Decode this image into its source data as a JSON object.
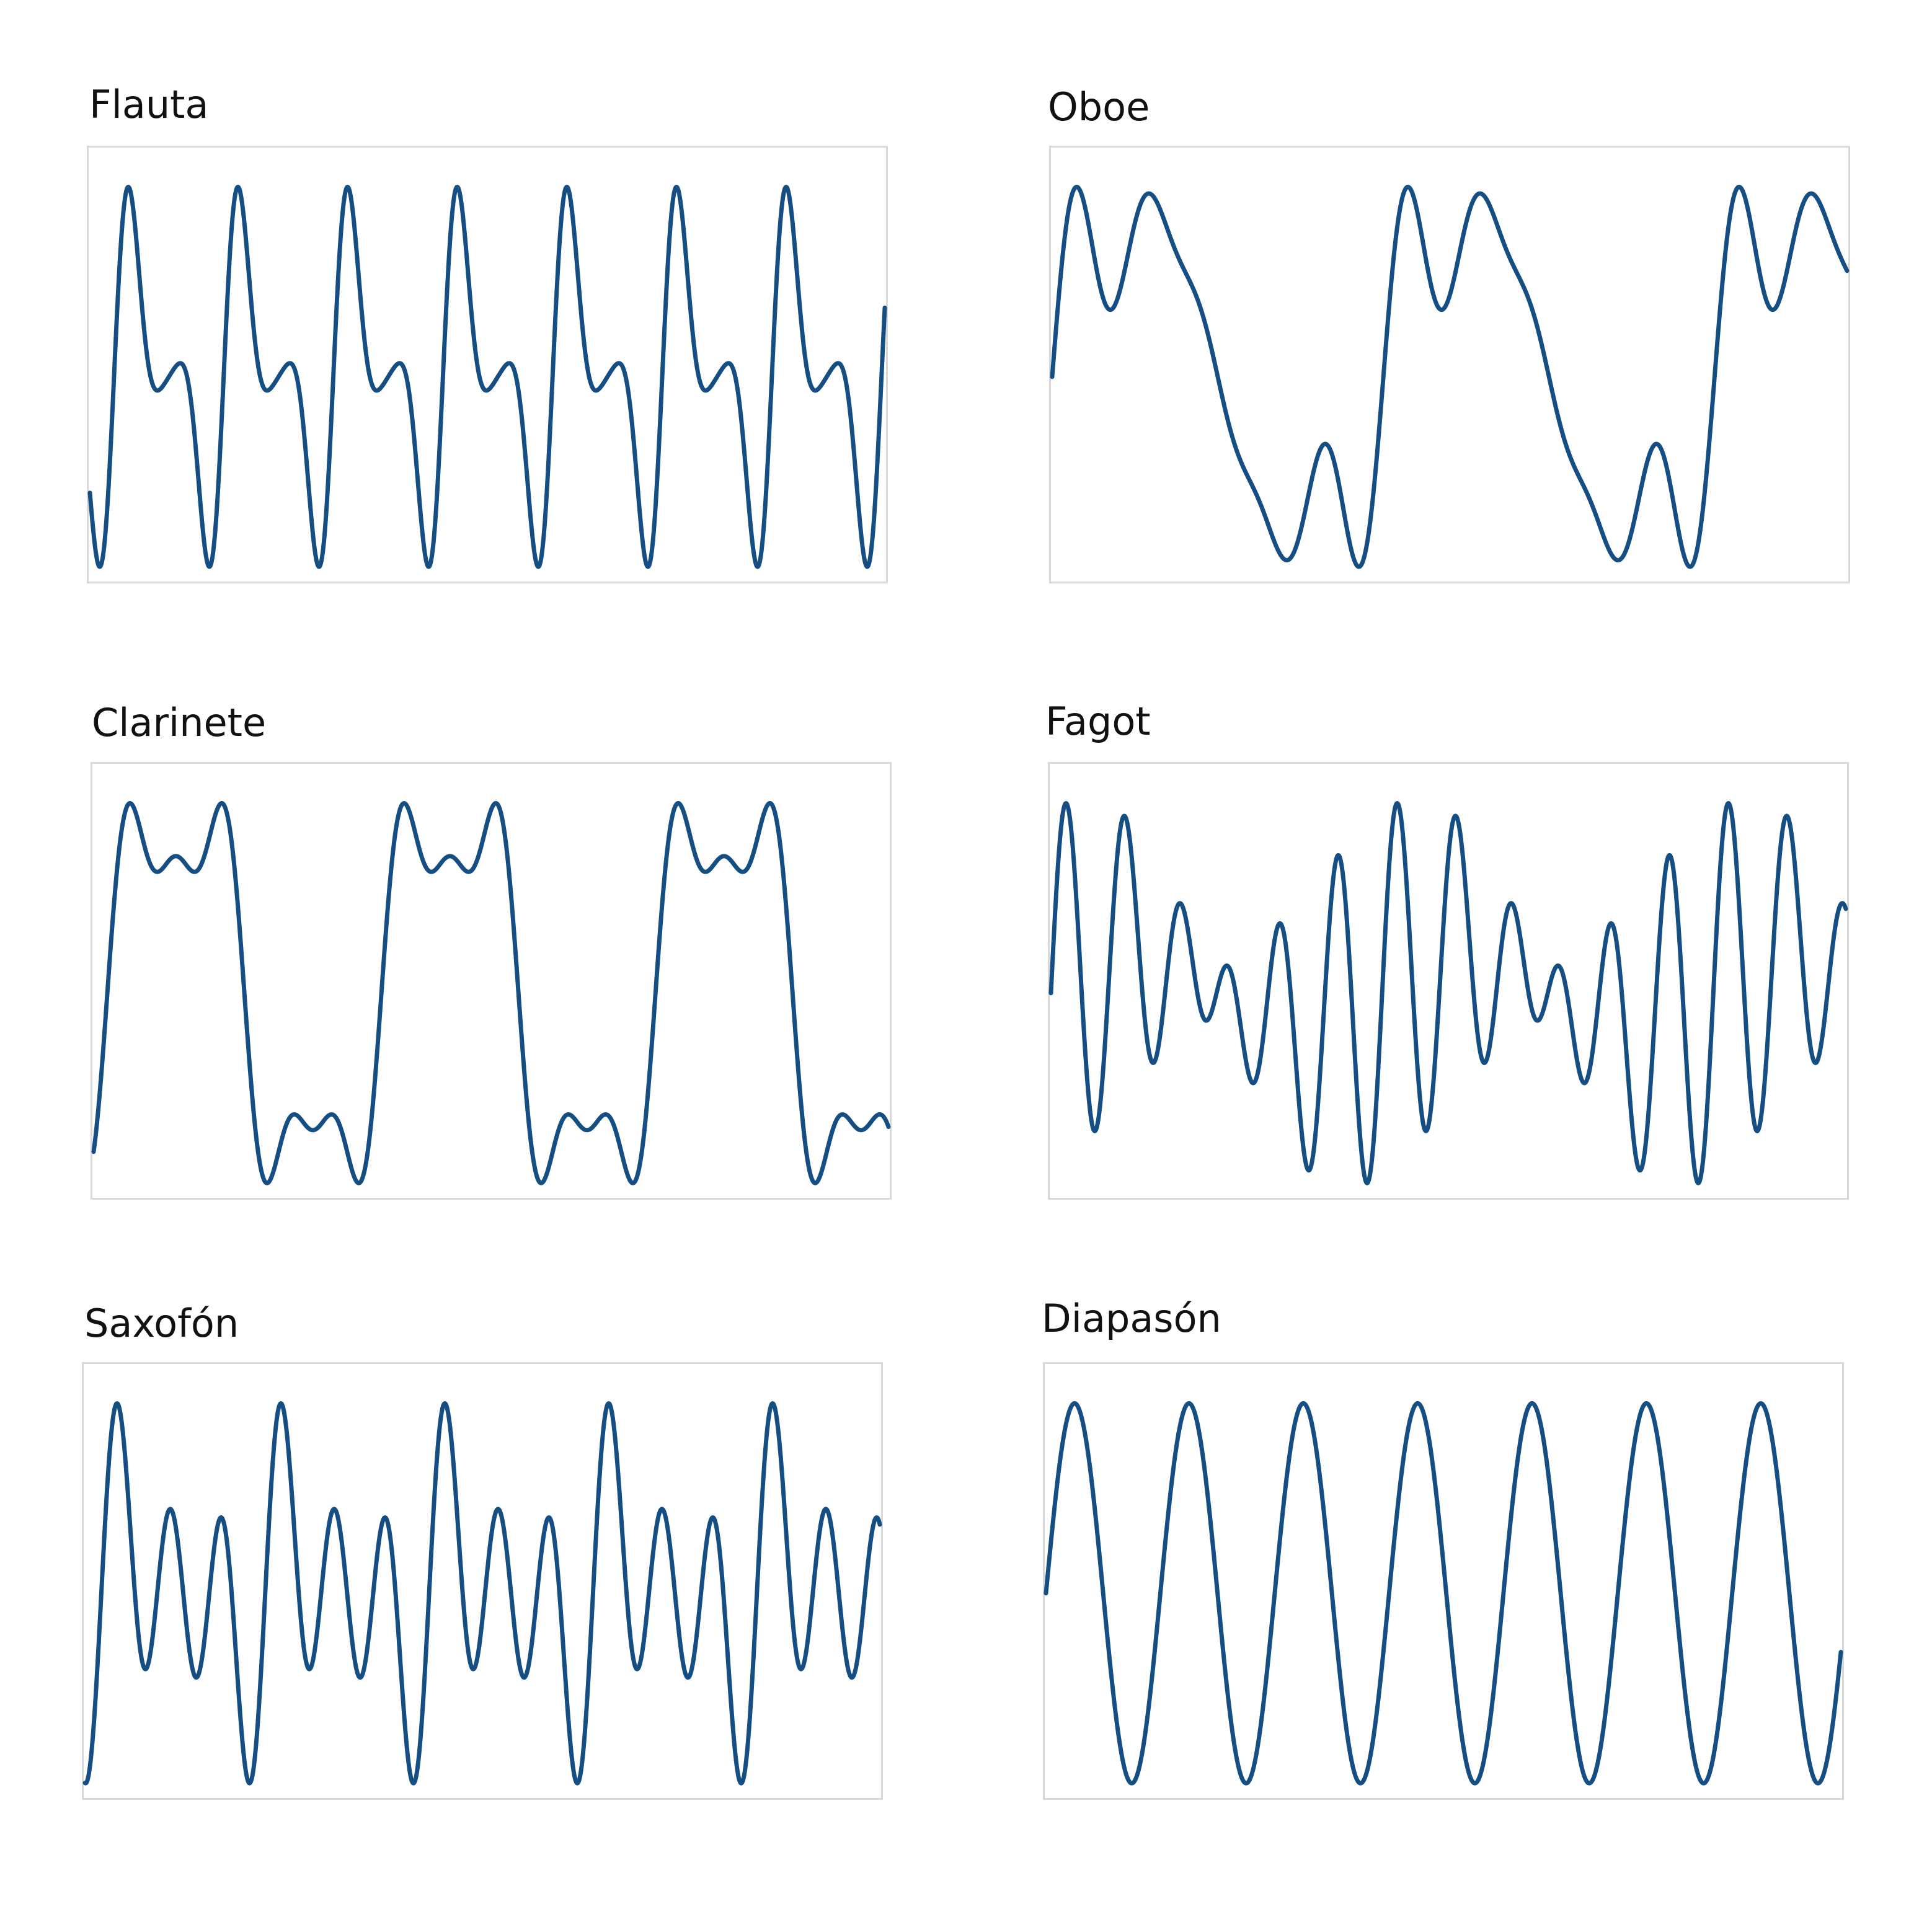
{
  "line_color": "#154e82",
  "chart_data": [
    {
      "type": "line",
      "title": "Flauta",
      "ylim": [
        -1,
        1
      ],
      "cycles": 7.25,
      "start_phase": -0.22,
      "harmonics": [
        {
          "n": 1,
          "amp": 0.5,
          "phase": 0
        },
        {
          "n": 2,
          "amp": 0.5,
          "phase": 0
        },
        {
          "n": 3,
          "amp": 0.12,
          "phase": 0
        }
      ]
    },
    {
      "type": "line",
      "title": "Oboe",
      "ylim": [
        -1,
        1
      ],
      "cycles": 2.4,
      "start_phase": 0,
      "harmonics": [
        {
          "n": 1,
          "amp": 0.62,
          "phase": 0
        },
        {
          "n": 3,
          "amp": 0.16,
          "phase": 0
        },
        {
          "n": 4,
          "amp": 0.2,
          "phase": 0
        },
        {
          "n": 5,
          "amp": 0.12,
          "phase": 0
        }
      ]
    },
    {
      "type": "line",
      "title": "Clarinete",
      "ylim": [
        -1,
        1
      ],
      "cycles": 2.9,
      "start_phase": -0.05,
      "harmonics": [
        {
          "n": 1,
          "amp": 0.58,
          "phase": 0
        },
        {
          "n": 3,
          "amp": 0.26,
          "phase": 0
        },
        {
          "n": 5,
          "amp": 0.12,
          "phase": 0
        }
      ]
    },
    {
      "type": "line",
      "title": "Fagot",
      "ylim": [
        -1,
        1
      ],
      "cycles": 2.4,
      "start_phase": 0,
      "harmonics": [
        {
          "n": 1,
          "amp": 0.15,
          "phase": 0
        },
        {
          "n": 5,
          "amp": 0.3,
          "phase": 0
        },
        {
          "n": 6,
          "amp": 0.42,
          "phase": 0
        }
      ]
    },
    {
      "type": "line",
      "title": "Saxofón",
      "ylim": [
        -1,
        1
      ],
      "cycles": 4.85,
      "start_phase": -0.1,
      "harmonics": [
        {
          "n": 1,
          "amp": 0.18,
          "phase": 0
        },
        {
          "n": 2,
          "amp": 0.24,
          "phase": 0
        },
        {
          "n": 3,
          "amp": 0.46,
          "phase": 0
        }
      ]
    },
    {
      "type": "line",
      "title": "Diapasón",
      "ylim": [
        -1,
        1
      ],
      "cycles": 6.95,
      "start_phase": 0,
      "harmonics": [
        {
          "n": 1,
          "amp": 0.88,
          "phase": 0
        }
      ]
    }
  ]
}
